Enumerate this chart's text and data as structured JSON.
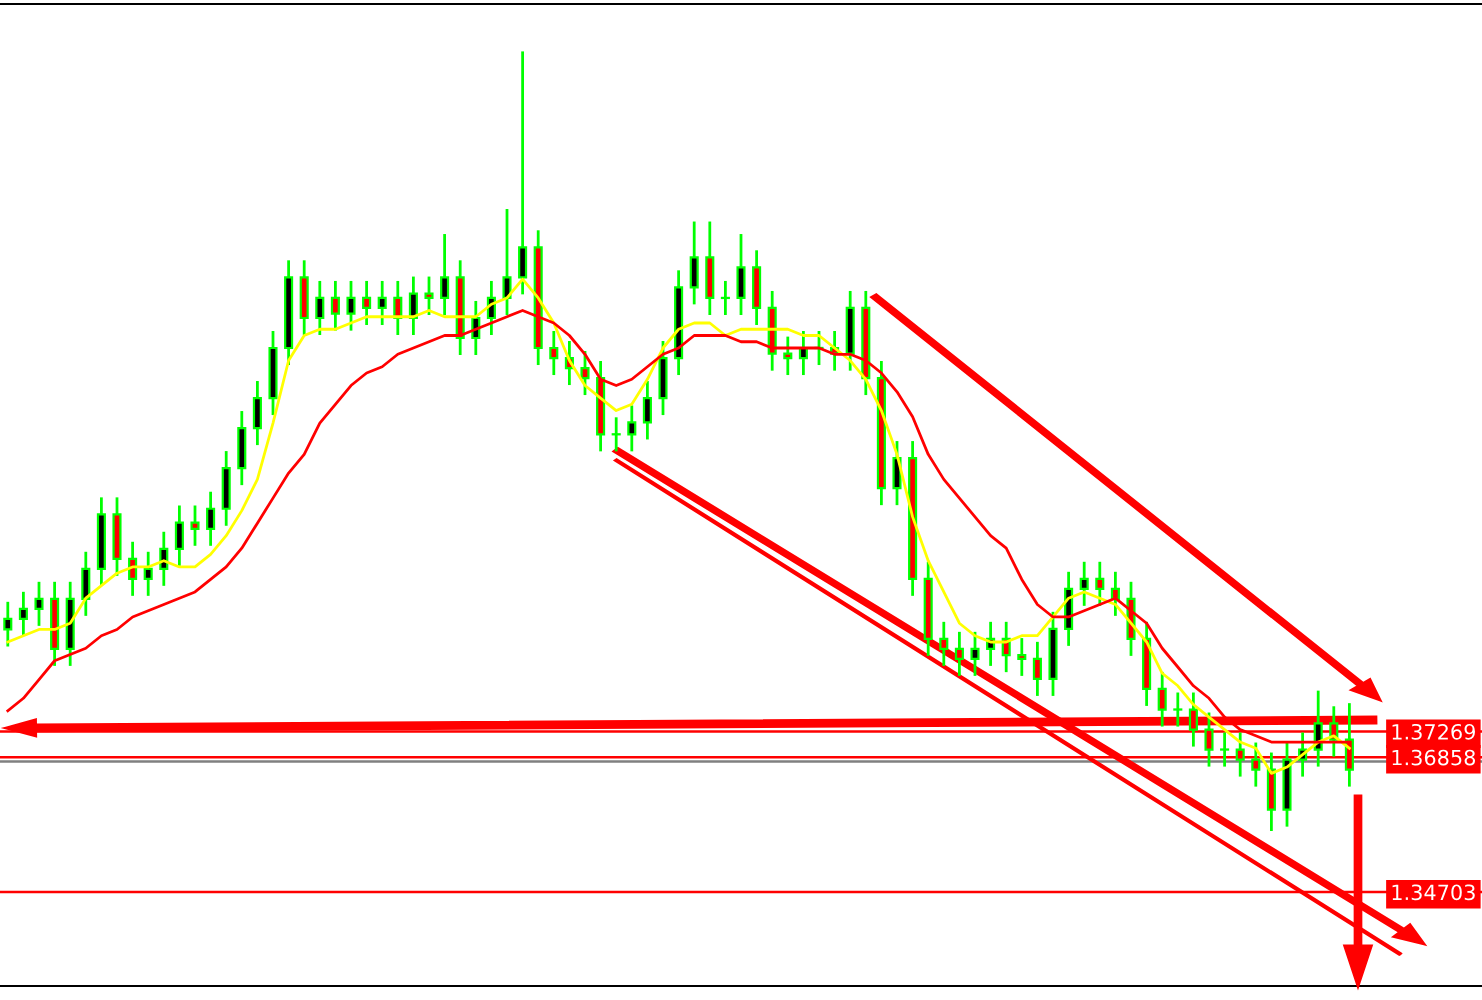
{
  "chart_data": {
    "type": "candlestick",
    "categories": [
      null,
      null,
      null,
      null,
      null,
      null,
      null,
      null,
      null,
      null,
      null,
      null,
      null,
      null,
      null,
      null,
      null,
      null,
      null,
      null,
      null,
      null,
      null,
      null,
      null,
      null,
      null,
      null,
      null,
      null,
      null,
      null,
      null,
      null,
      null,
      null,
      null,
      null,
      null,
      null,
      null,
      null,
      null,
      null,
      null,
      null,
      null,
      null,
      null,
      null,
      null,
      null,
      null,
      null,
      null,
      null,
      null,
      null,
      null,
      null,
      null,
      null,
      null,
      null,
      null,
      null,
      null,
      null,
      null,
      null,
      null,
      null,
      null,
      null,
      null,
      null,
      null,
      null,
      null,
      null,
      null,
      null,
      null,
      null,
      null,
      null,
      null
    ],
    "ohlc": [
      [
        1.389,
        1.3932,
        1.3865,
        1.3907
      ],
      [
        1.3907,
        1.3948,
        1.3882,
        1.3923
      ],
      [
        1.3923,
        1.3964,
        1.3898,
        1.3939
      ],
      [
        1.3939,
        1.3964,
        1.3834,
        1.3859
      ],
      [
        1.3859,
        1.3964,
        1.3834,
        1.3939
      ],
      [
        1.3939,
        1.4012,
        1.3914,
        1.3987
      ],
      [
        1.3987,
        1.4099,
        1.3962,
        1.4074
      ],
      [
        1.4074,
        1.4099,
        1.3978,
        1.4003
      ],
      [
        1.4003,
        1.4028,
        1.3946,
        1.3971
      ],
      [
        1.3971,
        1.4012,
        1.3946,
        1.3987
      ],
      [
        1.3987,
        1.4044,
        1.3962,
        1.4019
      ],
      [
        1.4019,
        1.4086,
        1.3994,
        1.4061
      ],
      [
        1.4061,
        1.4086,
        1.4026,
        1.4051
      ],
      [
        1.4051,
        1.4108,
        1.4026,
        1.4083
      ],
      [
        1.4083,
        1.4173,
        1.4058,
        1.4148
      ],
      [
        1.4148,
        1.4237,
        1.4123,
        1.4212
      ],
      [
        1.4212,
        1.4285,
        1.4187,
        1.426
      ],
      [
        1.426,
        1.4365,
        1.4235,
        1.434
      ],
      [
        1.434,
        1.4478,
        1.4315,
        1.4453
      ],
      [
        1.4453,
        1.4478,
        1.4363,
        1.4388
      ],
      [
        1.4388,
        1.4445,
        1.4363,
        1.442
      ],
      [
        1.442,
        1.4445,
        1.437,
        1.4395
      ],
      [
        1.4395,
        1.4445,
        1.437,
        1.442
      ],
      [
        1.442,
        1.4445,
        1.4379,
        1.4404
      ],
      [
        1.4404,
        1.4445,
        1.4379,
        1.442
      ],
      [
        1.442,
        1.4445,
        1.4363,
        1.4388
      ],
      [
        1.4388,
        1.4452,
        1.4363,
        1.4427
      ],
      [
        1.4427,
        1.4452,
        1.4395,
        1.442
      ],
      [
        1.442,
        1.452,
        1.4395,
        1.4453
      ],
      [
        1.4453,
        1.4478,
        1.4331,
        1.4356
      ],
      [
        1.4356,
        1.4413,
        1.4331,
        1.4388
      ],
      [
        1.4388,
        1.4445,
        1.4363,
        1.442
      ],
      [
        1.442,
        1.456,
        1.4395,
        1.4453
      ],
      [
        1.4453,
        1.4812,
        1.4428,
        1.4501
      ],
      [
        1.4501,
        1.4526,
        1.4315,
        1.434
      ],
      [
        1.434,
        1.4365,
        1.4299,
        1.4324
      ],
      [
        1.4324,
        1.4349,
        1.4283,
        1.4308
      ],
      [
        1.4308,
        1.4333,
        1.4267,
        1.4292
      ],
      [
        1.4292,
        1.4317,
        1.4177,
        1.4202
      ],
      [
        1.4202,
        1.4227,
        1.4177,
        1.4202
      ],
      [
        1.4202,
        1.4246,
        1.4177,
        1.4221
      ],
      [
        1.4221,
        1.4285,
        1.4196,
        1.426
      ],
      [
        1.426,
        1.4349,
        1.4235,
        1.4324
      ],
      [
        1.4324,
        1.4462,
        1.4299,
        1.4437
      ],
      [
        1.4437,
        1.454,
        1.4412,
        1.4485
      ],
      [
        1.4485,
        1.454,
        1.4395,
        1.442
      ],
      [
        1.442,
        1.4445,
        1.4395,
        1.442
      ],
      [
        1.442,
        1.452,
        1.4395,
        1.4469
      ],
      [
        1.4469,
        1.4494,
        1.4379,
        1.4404
      ],
      [
        1.4404,
        1.4429,
        1.4306,
        1.4331
      ],
      [
        1.4331,
        1.4356,
        1.4299,
        1.4324
      ],
      [
        1.4324,
        1.4365,
        1.4299,
        1.434
      ],
      [
        1.434,
        1.4365,
        1.4315,
        1.434
      ],
      [
        1.434,
        1.4365,
        1.4306,
        1.4331
      ],
      [
        1.4331,
        1.4429,
        1.4306,
        1.4404
      ],
      [
        1.4404,
        1.4429,
        1.4267,
        1.4292
      ],
      [
        1.4292,
        1.4317,
        1.4091,
        1.4116
      ],
      [
        1.4116,
        1.4189,
        1.4091,
        1.4164
      ],
      [
        1.4164,
        1.4189,
        1.3946,
        1.3971
      ],
      [
        1.3971,
        1.3996,
        1.385,
        1.3875
      ],
      [
        1.3875,
        1.39,
        1.3834,
        1.3859
      ],
      [
        1.3859,
        1.3884,
        1.3818,
        1.3843
      ],
      [
        1.3843,
        1.3884,
        1.3818,
        1.3859
      ],
      [
        1.3859,
        1.39,
        1.3834,
        1.3875
      ],
      [
        1.3875,
        1.39,
        1.3824,
        1.3849
      ],
      [
        1.3849,
        1.3874,
        1.3818,
        1.3843
      ],
      [
        1.3843,
        1.3868,
        1.3786,
        1.3811
      ],
      [
        1.3811,
        1.3916,
        1.3786,
        1.3891
      ],
      [
        1.3891,
        1.398,
        1.3866,
        1.3955
      ],
      [
        1.3955,
        1.3996,
        1.393,
        1.3971
      ],
      [
        1.3971,
        1.3996,
        1.393,
        1.3955
      ],
      [
        1.3955,
        1.398,
        1.3914,
        1.3939
      ],
      [
        1.3939,
        1.3964,
        1.385,
        1.3875
      ],
      [
        1.3875,
        1.39,
        1.377,
        1.3795
      ],
      [
        1.3795,
        1.382,
        1.3737,
        1.3762
      ],
      [
        1.3762,
        1.3787,
        1.3737,
        1.3762
      ],
      [
        1.3762,
        1.3787,
        1.3705,
        1.373
      ],
      [
        1.373,
        1.3755,
        1.3673,
        1.3698
      ],
      [
        1.3698,
        1.3723,
        1.3673,
        1.3698
      ],
      [
        1.3698,
        1.3723,
        1.3657,
        1.3682
      ],
      [
        1.3682,
        1.3707,
        1.3641,
        1.3666
      ],
      [
        1.3666,
        1.3691,
        1.357,
        1.3602
      ],
      [
        1.3602,
        1.3707,
        1.3577,
        1.3682
      ],
      [
        1.3682,
        1.3723,
        1.3657,
        1.3698
      ],
      [
        1.3698,
        1.379,
        1.3673,
        1.374
      ],
      [
        1.374,
        1.3765,
        1.3689,
        1.3714
      ],
      [
        1.3714,
        1.377,
        1.3641,
        1.3666
      ]
    ],
    "color": "#00ff00",
    "colors": [
      "#000000",
      "#000000",
      "#000000",
      "#ff0000",
      "#000000",
      "#000000",
      "#000000",
      "#ff0000",
      "#ff0000",
      "#000000",
      "#000000",
      "#000000",
      "#ff0000",
      "#000000",
      "#000000",
      "#000000",
      "#000000",
      "#000000",
      "#000000",
      "#ff0000",
      "#000000",
      "#ff0000",
      "#000000",
      "#ff0000",
      "#000000",
      "#ff0000",
      "#000000",
      "#ff0000",
      "#000000",
      "#ff0000",
      "#000000",
      "#000000",
      "#000000",
      "#000000",
      "#ff0000",
      "#ff0000",
      "#ff0000",
      "#ff0000",
      "#ff0000",
      "#000000",
      "#000000",
      "#000000",
      "#000000",
      "#000000",
      "#000000",
      "#ff0000",
      "#000000",
      "#000000",
      "#ff0000",
      "#ff0000",
      "#ff0000",
      "#000000",
      "#000000",
      "#ff0000",
      "#000000",
      "#ff0000",
      "#ff0000",
      "#000000",
      "#ff0000",
      "#ff0000",
      "#ff0000",
      "#ff0000",
      "#000000",
      "#000000",
      "#ff0000",
      "#ff0000",
      "#ff0000",
      "#000000",
      "#000000",
      "#000000",
      "#ff0000",
      "#ff0000",
      "#ff0000",
      "#ff0000",
      "#ff0000",
      "#000000",
      "#ff0000",
      "#ff0000",
      "#000000",
      "#ff0000",
      "#ff0000",
      "#ff0000",
      "#000000",
      "#000000",
      "#000000",
      "#ff0000",
      "#ff0000"
    ],
    "series": [
      {
        "type": "line",
        "color": "#ffff00",
        "values": [
          1.387,
          1.388,
          1.389,
          1.389,
          1.39,
          1.394,
          1.396,
          1.398,
          1.399,
          1.399,
          1.4,
          1.399,
          1.399,
          1.401,
          1.404,
          1.408,
          1.413,
          1.422,
          1.432,
          1.436,
          1.437,
          1.437,
          1.438,
          1.439,
          1.439,
          1.439,
          1.439,
          1.44,
          1.439,
          1.439,
          1.439,
          1.441,
          1.442,
          1.445,
          1.442,
          1.438,
          1.432,
          1.428,
          1.426,
          1.424,
          1.425,
          1.429,
          1.434,
          1.437,
          1.438,
          1.438,
          1.436,
          1.437,
          1.437,
          1.437,
          1.437,
          1.436,
          1.436,
          1.434,
          1.432,
          1.429,
          1.424,
          1.417,
          1.407,
          1.4,
          1.395,
          1.39,
          1.388,
          1.387,
          1.387,
          1.388,
          1.388,
          1.391,
          1.394,
          1.395,
          1.394,
          1.393,
          1.39,
          1.387,
          1.382,
          1.38,
          1.377,
          1.375,
          1.373,
          1.371,
          1.37,
          1.366,
          1.367,
          1.369,
          1.371,
          1.372,
          1.37
        ]
      },
      {
        "type": "line",
        "color": "#ff0000",
        "values": [
          1.376,
          1.378,
          1.381,
          1.384,
          1.385,
          1.386,
          1.388,
          1.389,
          1.391,
          1.392,
          1.393,
          1.394,
          1.395,
          1.397,
          1.399,
          1.402,
          1.406,
          1.41,
          1.414,
          1.417,
          1.422,
          1.425,
          1.428,
          1.43,
          1.431,
          1.433,
          1.434,
          1.435,
          1.436,
          1.436,
          1.437,
          1.438,
          1.439,
          1.44,
          1.439,
          1.438,
          1.436,
          1.433,
          1.429,
          1.428,
          1.429,
          1.431,
          1.433,
          1.434,
          1.436,
          1.436,
          1.436,
          1.435,
          1.435,
          1.434,
          1.434,
          1.434,
          1.434,
          1.433,
          1.433,
          1.432,
          1.43,
          1.427,
          1.423,
          1.417,
          1.413,
          1.41,
          1.407,
          1.404,
          1.402,
          1.397,
          1.393,
          1.391,
          1.391,
          1.392,
          1.393,
          1.394,
          1.392,
          1.39,
          1.386,
          1.383,
          1.38,
          1.378,
          1.375,
          1.373,
          1.372,
          1.371,
          1.371,
          1.371,
          1.371,
          1.371,
          1.371
        ]
      }
    ],
    "ylim": [
      1.332,
      1.489
    ],
    "yticks": [
      1.37269,
      1.36858,
      1.34703
    ],
    "tick_labels": "y",
    "ref_lines": [
      {
        "axis": "y",
        "value": 1.37269,
        "color": "#ff0000"
      },
      {
        "axis": "y",
        "value": 1.36858,
        "color": "#ff0000"
      },
      {
        "axis": "y",
        "value": 1.3679,
        "color": "#808080"
      },
      {
        "axis": "y",
        "value": 1.34703,
        "color": "#ff0000"
      }
    ]
  }
}
